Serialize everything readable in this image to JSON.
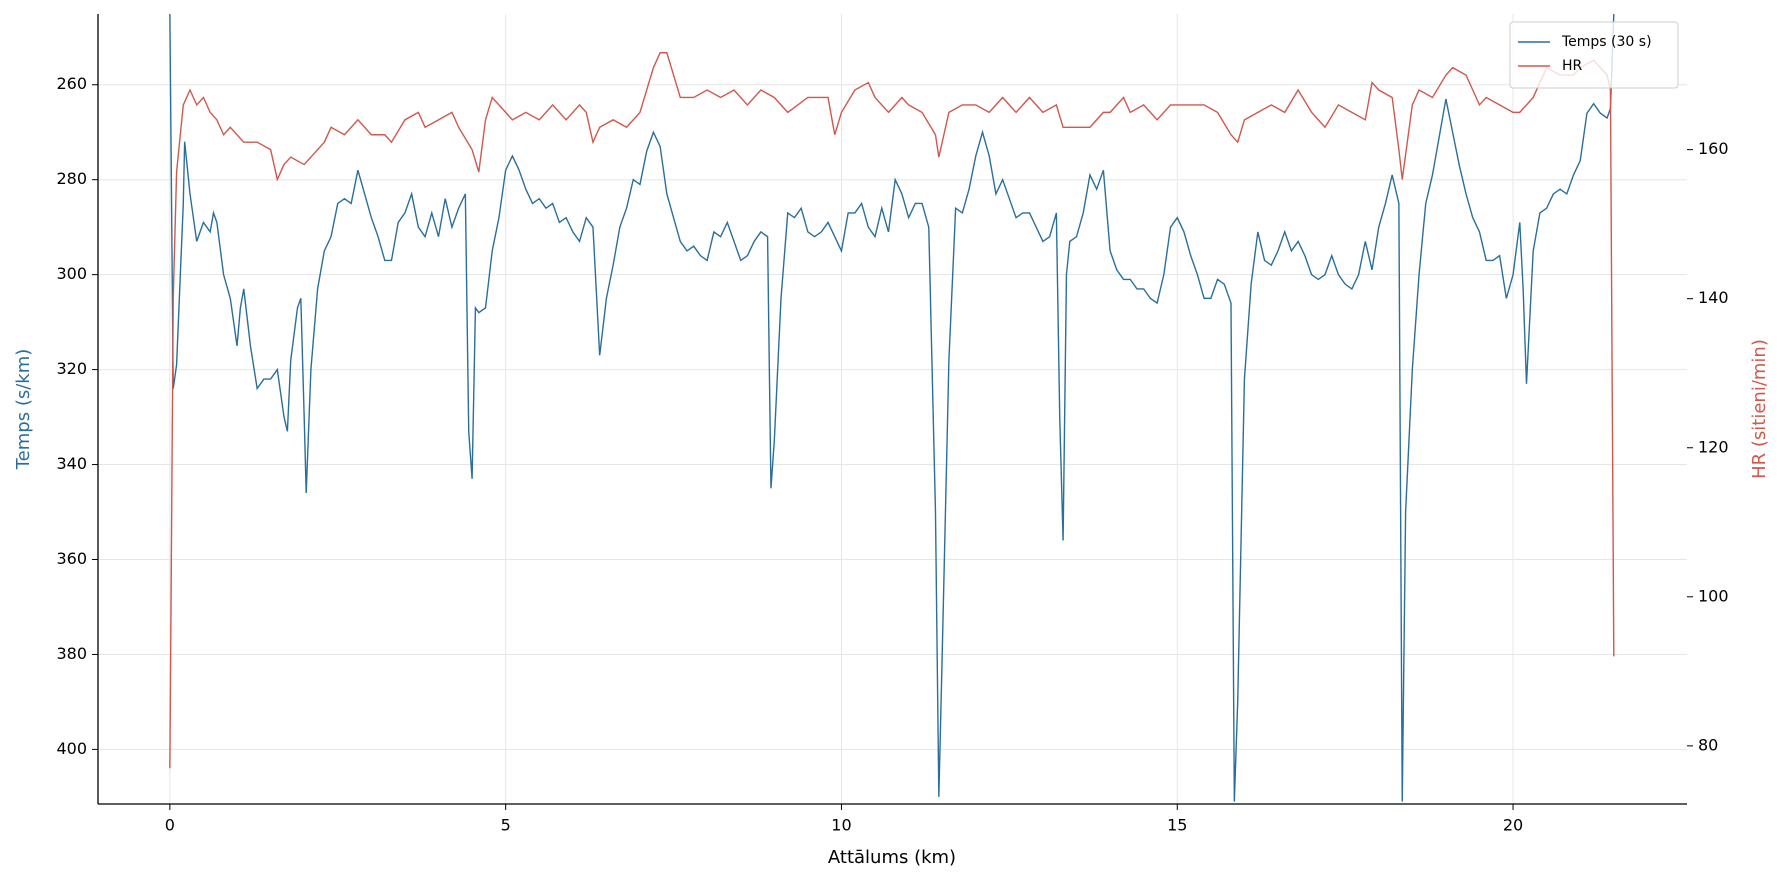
{
  "chart_data": {
    "type": "line",
    "xlabel": "Attālums (km)",
    "ylabel": "Temps (s/km)",
    "y2label": "HR (sitieni/min)",
    "xlim": [
      -1.07,
      22.59
    ],
    "xticks": [
      0,
      5,
      10,
      15,
      20
    ],
    "ylim": [
      411.5,
      245.1
    ],
    "yticks": [
      260,
      280,
      300,
      320,
      340,
      360,
      380,
      400
    ],
    "y2lim": [
      72.2,
      178.2
    ],
    "y2ticks": [
      80,
      100,
      120,
      140,
      160
    ],
    "grid": true,
    "legend": "upper right",
    "series": [
      {
        "name": "Temps (30 s)",
        "color": "#2a6f9b",
        "axis": "y",
        "x": [
          0,
          0.05,
          0.1,
          0.2,
          0.22,
          0.3,
          0.4,
          0.5,
          0.6,
          0.65,
          0.7,
          0.8,
          0.9,
          1.0,
          1.05,
          1.1,
          1.2,
          1.3,
          1.4,
          1.5,
          1.6,
          1.7,
          1.75,
          1.8,
          1.9,
          1.95,
          2.0,
          2.03,
          2.1,
          2.2,
          2.3,
          2.4,
          2.5,
          2.6,
          2.7,
          2.8,
          2.9,
          3.0,
          3.1,
          3.2,
          3.3,
          3.4,
          3.5,
          3.6,
          3.7,
          3.8,
          3.9,
          4.0,
          4.1,
          4.2,
          4.3,
          4.4,
          4.45,
          4.5,
          4.55,
          4.6,
          4.7,
          4.8,
          4.9,
          5.0,
          5.1,
          5.2,
          5.3,
          5.4,
          5.5,
          5.6,
          5.7,
          5.8,
          5.9,
          6.0,
          6.1,
          6.2,
          6.3,
          6.4,
          6.5,
          6.6,
          6.7,
          6.8,
          6.9,
          7.0,
          7.1,
          7.2,
          7.3,
          7.4,
          7.5,
          7.6,
          7.7,
          7.8,
          7.9,
          8.0,
          8.1,
          8.2,
          8.3,
          8.4,
          8.5,
          8.6,
          8.7,
          8.8,
          8.9,
          8.95,
          9.0,
          9.1,
          9.2,
          9.3,
          9.4,
          9.5,
          9.6,
          9.7,
          9.8,
          9.9,
          10.0,
          10.1,
          10.2,
          10.3,
          10.4,
          10.5,
          10.6,
          10.7,
          10.8,
          10.9,
          11.0,
          11.1,
          11.2,
          11.3,
          11.4,
          11.45,
          11.5,
          11.6,
          11.7,
          11.8,
          11.9,
          12.0,
          12.1,
          12.2,
          12.3,
          12.4,
          12.5,
          12.6,
          12.7,
          12.8,
          12.9,
          13.0,
          13.1,
          13.2,
          13.25,
          13.3,
          13.35,
          13.4,
          13.5,
          13.6,
          13.7,
          13.8,
          13.9,
          14.0,
          14.1,
          14.2,
          14.3,
          14.4,
          14.5,
          14.6,
          14.7,
          14.8,
          14.9,
          15.0,
          15.1,
          15.2,
          15.3,
          15.4,
          15.5,
          15.6,
          15.7,
          15.8,
          15.85,
          15.9,
          16.0,
          16.1,
          16.2,
          16.3,
          16.4,
          16.5,
          16.6,
          16.7,
          16.8,
          16.9,
          17.0,
          17.1,
          17.2,
          17.3,
          17.4,
          17.5,
          17.6,
          17.7,
          17.8,
          17.9,
          18.0,
          18.1,
          18.2,
          18.3,
          18.35,
          18.4,
          18.5,
          18.6,
          18.7,
          18.8,
          18.9,
          19.0,
          19.1,
          19.2,
          19.3,
          19.4,
          19.5,
          19.6,
          19.7,
          19.8,
          19.9,
          20.0,
          20.1,
          20.15,
          20.2,
          20.3,
          20.4,
          20.5,
          20.6,
          20.7,
          20.8,
          20.9,
          21.0,
          21.1,
          21.2,
          21.3,
          21.4,
          21.45,
          21.5
        ],
        "values": [
          245,
          324,
          319,
          285,
          272,
          283,
          293,
          289,
          291,
          287,
          289,
          300,
          305,
          315,
          307,
          303,
          315,
          324,
          322,
          322,
          320,
          330,
          333,
          318,
          307,
          305,
          330,
          346,
          320,
          303,
          295,
          292,
          285,
          284,
          285,
          278,
          283,
          288,
          292,
          297,
          297,
          289,
          287,
          283,
          290,
          292,
          287,
          292,
          284,
          290,
          286,
          283,
          333,
          343,
          307,
          308,
          307,
          295,
          288,
          278,
          275,
          278,
          282,
          285,
          284,
          286,
          285,
          289,
          288,
          291,
          293,
          288,
          290,
          317,
          305,
          298,
          290,
          286,
          280,
          281,
          274,
          270,
          273,
          283,
          288,
          293,
          295,
          294,
          296,
          297,
          291,
          292,
          289,
          293,
          297,
          296,
          293,
          291,
          292,
          345,
          335,
          305,
          287,
          288,
          286,
          291,
          292,
          291,
          289,
          292,
          295,
          287,
          287,
          285,
          290,
          292,
          286,
          291,
          280,
          283,
          288,
          285,
          285,
          290,
          350,
          410,
          380,
          318,
          286,
          287,
          282,
          275,
          270,
          275,
          283,
          280,
          284,
          288,
          287,
          287,
          290,
          293,
          292,
          287,
          330,
          356,
          300,
          293,
          292,
          287,
          279,
          282,
          278,
          295,
          299,
          301,
          301,
          303,
          303,
          305,
          306,
          300,
          290,
          288,
          291,
          296,
          300,
          305,
          305,
          301,
          302,
          306,
          411,
          390,
          322,
          302,
          291,
          297,
          298,
          295,
          291,
          295,
          293,
          296,
          300,
          301,
          300,
          296,
          300,
          302,
          303,
          300,
          293,
          299,
          290,
          285,
          279,
          285,
          411,
          350,
          320,
          300,
          285,
          279,
          271,
          263,
          270,
          277,
          283,
          288,
          291,
          297,
          297,
          296,
          305,
          300,
          289,
          303,
          323,
          295,
          287,
          286,
          283,
          282,
          283,
          279,
          276,
          266,
          264,
          266,
          267,
          265,
          245
        ]
      },
      {
        "name": "HR",
        "color": "#d0584c",
        "axis": "y2",
        "x": [
          0,
          0.05,
          0.1,
          0.2,
          0.3,
          0.4,
          0.5,
          0.6,
          0.7,
          0.8,
          0.9,
          1.0,
          1.1,
          1.3,
          1.5,
          1.6,
          1.7,
          1.8,
          2.0,
          2.1,
          2.3,
          2.4,
          2.6,
          2.8,
          3.0,
          3.2,
          3.3,
          3.5,
          3.7,
          3.8,
          4.0,
          4.2,
          4.3,
          4.5,
          4.6,
          4.7,
          4.8,
          5.0,
          5.1,
          5.3,
          5.5,
          5.7,
          5.9,
          6.1,
          6.2,
          6.3,
          6.4,
          6.6,
          6.8,
          7.0,
          7.2,
          7.3,
          7.4,
          7.5,
          7.6,
          7.8,
          8.0,
          8.2,
          8.4,
          8.6,
          8.8,
          9.0,
          9.2,
          9.5,
          9.8,
          9.9,
          10.0,
          10.2,
          10.4,
          10.5,
          10.7,
          10.9,
          11.0,
          11.2,
          11.4,
          11.45,
          11.6,
          11.8,
          12.0,
          12.2,
          12.4,
          12.6,
          12.8,
          13.0,
          13.2,
          13.3,
          13.5,
          13.7,
          13.9,
          14.0,
          14.2,
          14.3,
          14.5,
          14.7,
          14.9,
          15.0,
          15.2,
          15.4,
          15.6,
          15.8,
          15.9,
          16.0,
          16.2,
          16.4,
          16.6,
          16.8,
          17.0,
          17.2,
          17.4,
          17.6,
          17.8,
          17.9,
          18.0,
          18.2,
          18.3,
          18.35,
          18.5,
          18.6,
          18.8,
          19.0,
          19.1,
          19.3,
          19.5,
          19.6,
          19.8,
          20.0,
          20.1,
          20.3,
          20.5,
          20.7,
          20.9,
          21.0,
          21.2,
          21.4,
          21.45,
          21.5
        ],
        "values": [
          77,
          140,
          157,
          166,
          168,
          166,
          167,
          165,
          164,
          162,
          163,
          162,
          161,
          161,
          160,
          156,
          158,
          159,
          158,
          159,
          161,
          163,
          162,
          164,
          162,
          162,
          161,
          164,
          165,
          163,
          164,
          165,
          163,
          160,
          157,
          164,
          167,
          165,
          164,
          165,
          164,
          166,
          164,
          166,
          165,
          161,
          163,
          164,
          163,
          165,
          171,
          173,
          173,
          170,
          167,
          167,
          168,
          167,
          168,
          166,
          168,
          167,
          165,
          167,
          167,
          162,
          165,
          168,
          169,
          167,
          165,
          167,
          166,
          165,
          162,
          159,
          165,
          166,
          166,
          165,
          167,
          165,
          167,
          165,
          166,
          163,
          163,
          163,
          165,
          165,
          167,
          165,
          166,
          164,
          166,
          166,
          166,
          166,
          165,
          162,
          161,
          164,
          165,
          166,
          165,
          168,
          165,
          163,
          166,
          165,
          164,
          169,
          168,
          167,
          160,
          156,
          166,
          168,
          167,
          170,
          171,
          170,
          166,
          167,
          166,
          165,
          165,
          167,
          171,
          170,
          170,
          171,
          172,
          170,
          168,
          92
        ]
      }
    ]
  }
}
